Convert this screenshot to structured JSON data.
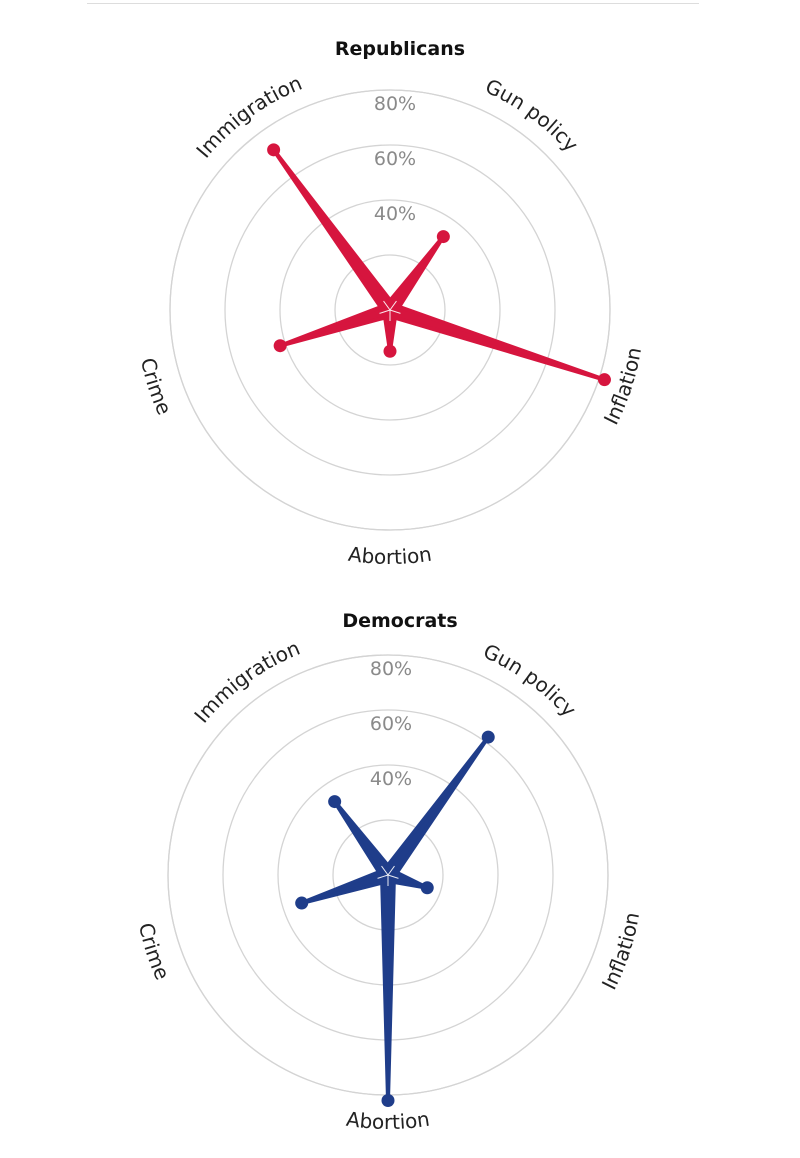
{
  "chart_data": [
    {
      "type": "radar",
      "title": "Republicans",
      "color": "#d6153e",
      "categories": [
        "Gun policy",
        "Inflation",
        "Abortion",
        "Crime",
        "Immigration"
      ],
      "values": [
        33,
        82,
        15,
        42,
        72
      ],
      "rings": [
        40,
        60,
        80
      ],
      "ring_labels": [
        "40%",
        "60%",
        "80%"
      ],
      "rlim": [
        0,
        100
      ]
    },
    {
      "type": "radar",
      "title": "Democrats",
      "color": "#1f3d8a",
      "categories": [
        "Gun policy",
        "Inflation",
        "Abortion",
        "Crime",
        "Immigration"
      ],
      "values": [
        62,
        15,
        82,
        33,
        33
      ],
      "rings": [
        40,
        60,
        80
      ],
      "ring_labels": [
        "40%",
        "60%",
        "80%"
      ],
      "rlim": [
        0,
        100
      ]
    }
  ]
}
